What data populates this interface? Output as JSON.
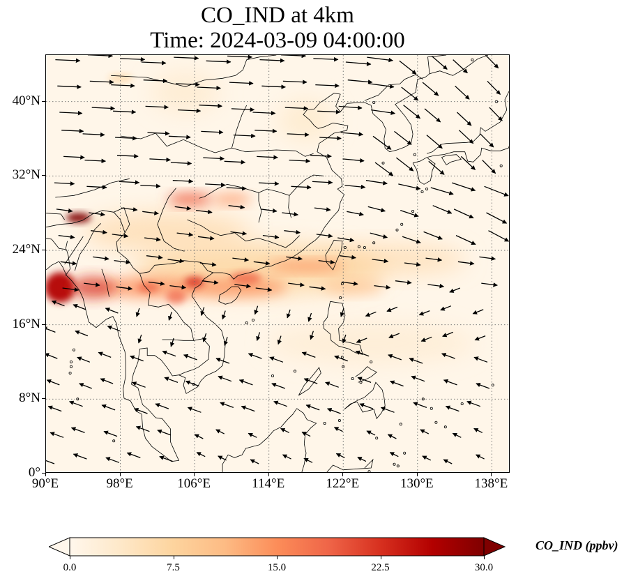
{
  "title": {
    "line1": "CO_IND at 4km",
    "line2": "Time: 2024-03-09 04:00:00"
  },
  "map": {
    "lon_range": [
      90,
      140
    ],
    "lat_range": [
      0,
      45
    ],
    "lon_ticks": [
      "90°E",
      "98°E",
      "106°E",
      "114°E",
      "122°E",
      "130°E",
      "138°E"
    ],
    "lat_ticks": [
      "0°",
      "8°N",
      "16°N",
      "24°N",
      "32°N",
      "40°N"
    ],
    "gridlines": "dotted",
    "field": "CO_IND",
    "units": "ppbv",
    "vector_field": "wind arrows (black)",
    "high_concentration_areas": [
      "Myanmar / Yunnan border region (~27°N, 94°E)",
      "Northern Laos / Myanmar / Thailand (~20°N, 90–95°E)",
      "Band along southern China and South China Sea (~21–23°N, 100–125°E)",
      "Sichuan basin (~29.5°N, 105°E)",
      "Red River delta (~20°N, 106°E)"
    ]
  },
  "colorbar": {
    "label": "CO_IND (ppbv)",
    "min": 0.0,
    "max": 30.0,
    "ticks": [
      "0.0",
      "7.5",
      "15.0",
      "22.5",
      "30.0"
    ],
    "extend": "both",
    "colormap": "OrRd",
    "colors": [
      "#fff7ec",
      "#fee8c8",
      "#fdd49e",
      "#fdbb84",
      "#fc8d59",
      "#ef6548",
      "#d7301f",
      "#b30000",
      "#7f0000"
    ]
  }
}
